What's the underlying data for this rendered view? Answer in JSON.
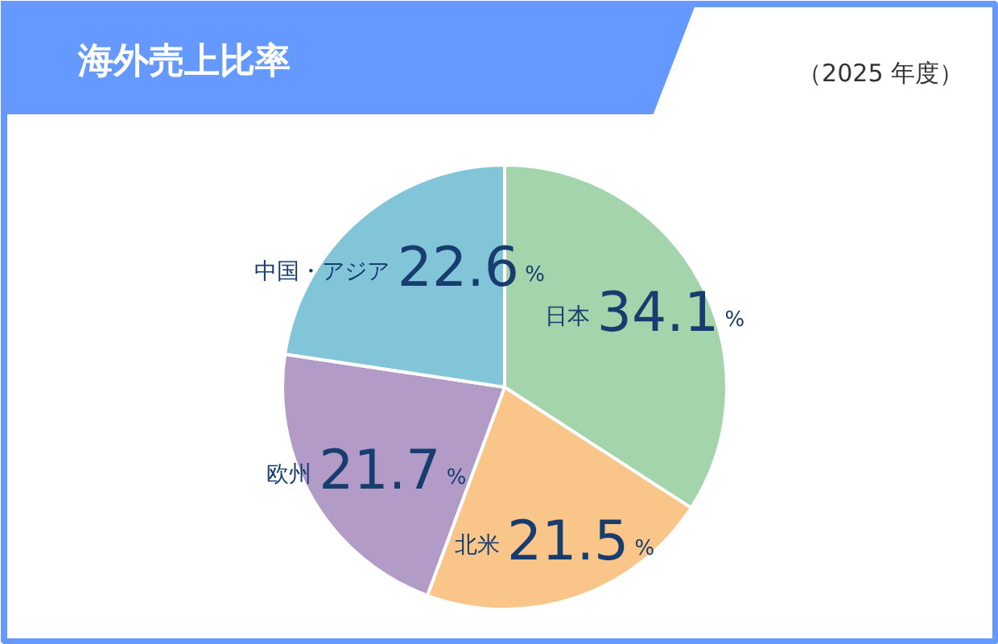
{
  "chart_data": {
    "type": "pie",
    "title": "海外売上比率",
    "subtitle": "（2025 年度）",
    "categories": [
      "日本",
      "北米",
      "欧州",
      "中国・アジア"
    ],
    "values": [
      34.1,
      21.5,
      21.7,
      22.6
    ],
    "colors": [
      "#a3d4ab",
      "#f9c588",
      "#b39bc8",
      "#82c4d8"
    ],
    "value_labels": [
      "34.1%",
      "21.5%",
      "21.7%",
      "22.6%"
    ]
  }
}
